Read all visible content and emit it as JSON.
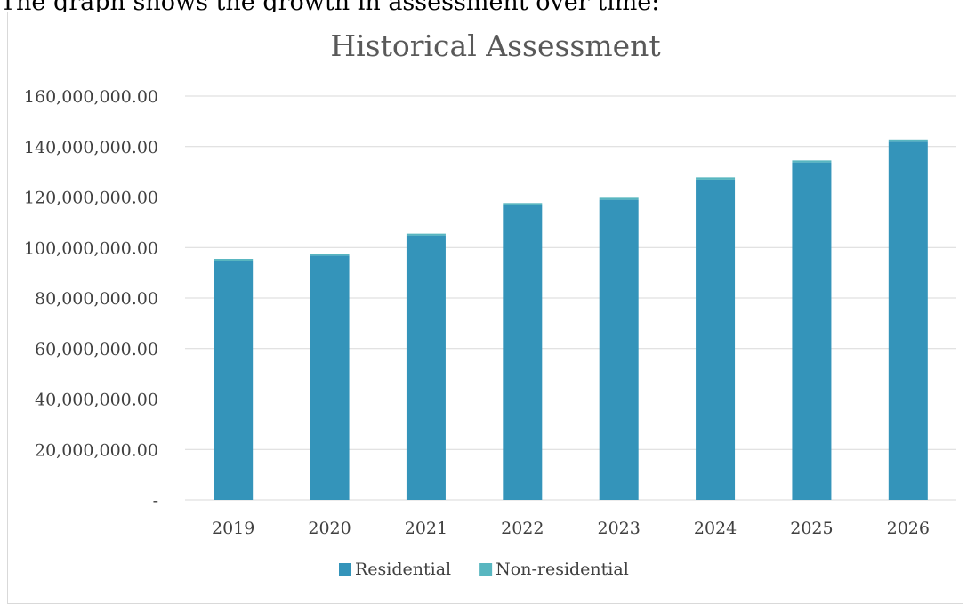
{
  "top_text": "The graph shows the growth in assessment over time:",
  "chart_data": {
    "type": "bar",
    "stacked": true,
    "title": "Historical Assessment",
    "xlabel": "",
    "ylabel": "",
    "categories": [
      "2019",
      "2020",
      "2021",
      "2022",
      "2023",
      "2024",
      "2025",
      "2026"
    ],
    "series": [
      {
        "name": "Residential",
        "color": "#3494ba",
        "values": [
          94800000,
          96800000,
          104800000,
          116800000,
          118900000,
          126900000,
          133700000,
          141900000
        ]
      },
      {
        "name": "Non-residential",
        "color": "#58b6c0",
        "values": [
          700000,
          700000,
          700000,
          800000,
          800000,
          900000,
          800000,
          900000
        ]
      }
    ],
    "ylim": [
      0,
      160000000
    ],
    "yticks": [
      0,
      20000000,
      40000000,
      60000000,
      80000000,
      100000000,
      120000000,
      140000000,
      160000000
    ],
    "ytick_labels": [
      "-",
      "20,000,000.00",
      "40,000,000.00",
      "60,000,000.00",
      "80,000,000.00",
      "100,000,000.00",
      "120,000,000.00",
      "140,000,000.00",
      "160,000,000.00"
    ],
    "grid": true,
    "legend": "bottom"
  }
}
